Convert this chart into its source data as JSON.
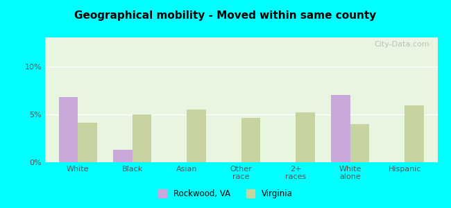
{
  "title": "Geographical mobility - Moved within same county",
  "categories": [
    "White",
    "Black",
    "Asian",
    "Other\nrace",
    "2+\nraces",
    "White\nalone",
    "Hispanic"
  ],
  "rockwood_values": [
    6.8,
    1.3,
    0.0,
    0.0,
    0.0,
    7.0,
    0.0
  ],
  "virginia_values": [
    4.1,
    5.0,
    5.5,
    4.6,
    5.2,
    4.0,
    5.9
  ],
  "rockwood_color": "#c9a8dc",
  "virginia_color": "#c8d4a0",
  "ylim": [
    0,
    13
  ],
  "yticks": [
    0,
    5,
    10
  ],
  "ytick_labels": [
    "0%",
    "5%",
    "10%"
  ],
  "bar_width": 0.35,
  "legend_labels": [
    "Rockwood, VA",
    "Virginia"
  ],
  "background_color": "#e8f5e0",
  "outer_background": "#00ffff",
  "watermark": "City-Data.com"
}
